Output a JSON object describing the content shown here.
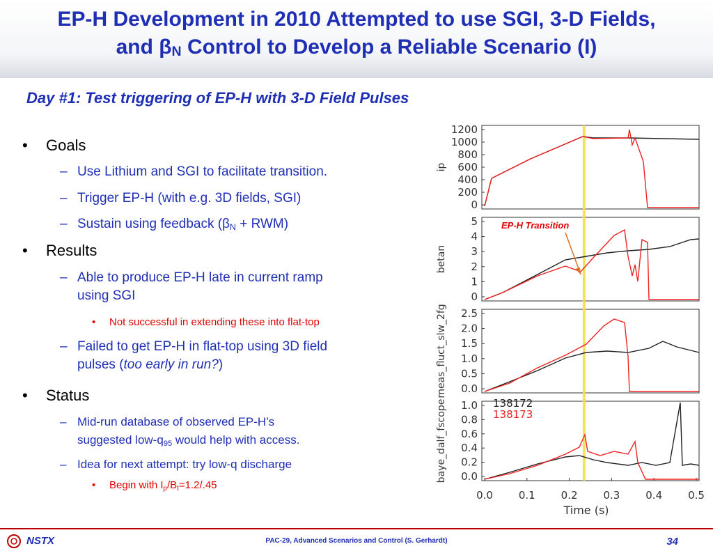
{
  "title": {
    "line1": "EP-H Development in 2010 Attempted to use SGI, 3-D Fields,",
    "line2_pre": "and ",
    "line2_beta": "β",
    "line2_sub": "N",
    "line2_post": " Control to Develop a Reliable Scenario (I)"
  },
  "subtitle": "Day #1: Test triggering of EP-H with 3-D Field Pulses",
  "bullets": {
    "goals": {
      "label": "Goals",
      "item1": "Use Lithium and SGI to facilitate transition.",
      "item2": "Trigger EP-H (with e.g. 3D fields, SGI)",
      "item3_pre": "Sustain using feedback (",
      "item3_beta": "β",
      "item3_sub": "N",
      "item3_post": " +  RWM)"
    },
    "results": {
      "label": "Results",
      "item1_line1": "Able to produce EP-H late in current ramp",
      "item1_line2": "using SGI",
      "item1_sub": "Not successful in extending these into flat-top",
      "item2_line1": "Failed to get EP-H in flat-top using 3D field",
      "item2_line2_pre": "pulses (",
      "item2_line2_italic": "too early in run?",
      "item2_line2_post": ")"
    },
    "status": {
      "label": "Status",
      "item1_line1": "Mid-run database of observed EP-H’s",
      "item1_line2_pre": "suggested low-q",
      "item1_line2_sub": "95",
      "item1_line2_post": " would help with access.",
      "item2": "Idea for next attempt: try low-q discharge",
      "item2_sub_pre": "Begin with I",
      "item2_sub_p": "p",
      "item2_sub_mid": "/B",
      "item2_sub_t": "t",
      "item2_sub_post": "=1.2/.45"
    },
    "bullet_char": "•",
    "dash_char": "–"
  },
  "figure": {
    "annotation": "EP-H Transition",
    "xlabel": "Time (s)",
    "xticks": [
      "0.0",
      "0.1",
      "0.2",
      "0.3",
      "0.4",
      "0.5"
    ],
    "panels": [
      {
        "ylabel": "ip",
        "yticks": [
          "1200",
          "1000",
          "800",
          "600",
          "400",
          "200",
          "0"
        ]
      },
      {
        "ylabel": "betan",
        "yticks": [
          "5",
          "4",
          "3",
          "2",
          "1",
          "0"
        ]
      },
      {
        "ylabel": "meas_fluct_slw_2fg",
        "yticks": [
          "2.5",
          "2.0",
          "1.5",
          "1.0",
          "0.5",
          "0.0"
        ]
      },
      {
        "ylabel": "baye_dalf_fscope",
        "yticks": [
          "1.0",
          "0.8",
          "0.6",
          "0.4",
          "0.2",
          "0.0"
        ]
      }
    ],
    "legend": [
      {
        "name": "138172",
        "color": "#202020"
      },
      {
        "name": "138173",
        "color": "#ee2222"
      }
    ],
    "marker_color": "#f0e050"
  },
  "footer": {
    "text": "PAC-29, Advanced Scenarios and Control (S. Gerhardt)",
    "page": "34",
    "logo": "NSTX"
  },
  "colors": {
    "title": "#1f2fb5",
    "accent_red": "#e00000",
    "footer_line": "#c00000"
  }
}
